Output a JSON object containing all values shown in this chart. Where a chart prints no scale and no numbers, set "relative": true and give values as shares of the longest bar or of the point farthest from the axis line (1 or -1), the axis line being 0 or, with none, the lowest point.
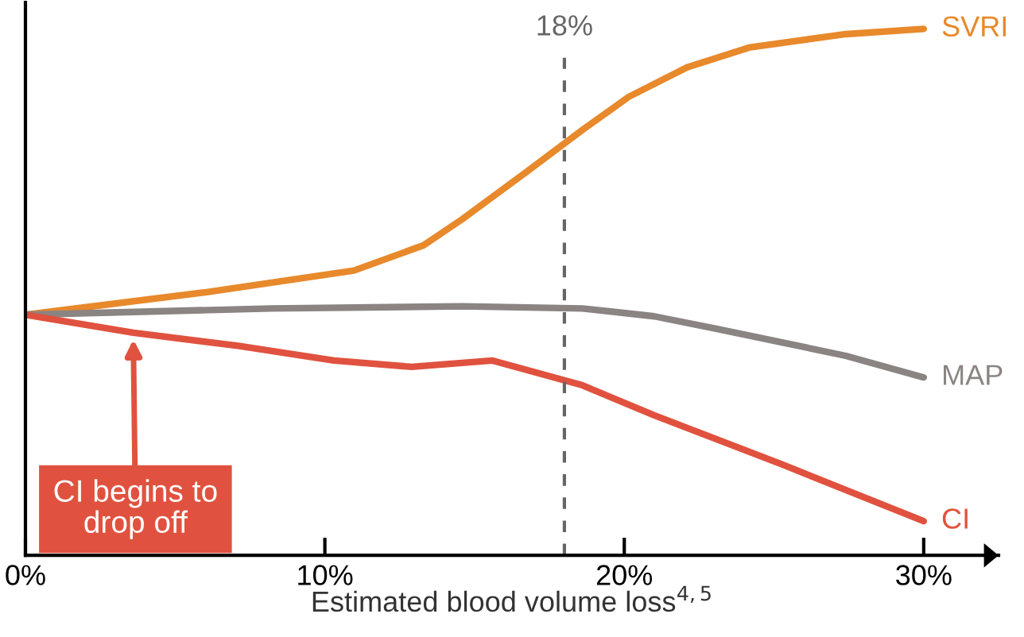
{
  "chart_data": {
    "type": "line",
    "relative": true,
    "xlabel": "Estimated blood volume loss$^{4,5}$",
    "xlim": [
      0,
      32.5
    ],
    "xticks": [
      {
        "value": 0,
        "label": "0%"
      },
      {
        "value": 10,
        "label": "10%"
      },
      {
        "value": 20,
        "label": "20%"
      },
      {
        "value": 30,
        "label": "30%"
      }
    ],
    "series": [
      {
        "name": "SVRI",
        "color": "#e8892b",
        "x": [
          0,
          6.05,
          10.97,
          13.3,
          14.6,
          16.7,
          18.6,
          20.15,
          22.1,
          24.2,
          27.4,
          30
        ],
        "values": [
          0.457,
          0.5,
          0.541,
          0.589,
          0.639,
          0.727,
          0.808,
          0.871,
          0.927,
          0.965,
          0.99,
          1.0
        ]
      },
      {
        "name": "MAP",
        "color": "#8a8483",
        "x": [
          0,
          8.2,
          14.6,
          18.6,
          21.0,
          23.1,
          25.3,
          27.4,
          30
        ],
        "values": [
          0.457,
          0.469,
          0.473,
          0.469,
          0.454,
          0.43,
          0.404,
          0.379,
          0.338
        ]
      },
      {
        "name": "CI",
        "color": "#e0523f",
        "x": [
          0,
          3.6,
          7.1,
          10.3,
          12.9,
          15.6,
          18.6,
          21.0,
          25.3,
          30
        ],
        "values": [
          0.457,
          0.423,
          0.398,
          0.37,
          0.358,
          0.37,
          0.323,
          0.266,
          0.172,
          0.065
        ]
      }
    ],
    "ref_lines": [
      {
        "axis": "x",
        "value": 18,
        "label": "18%",
        "color": "#666666",
        "line_style": "dashed"
      }
    ],
    "annotations": [
      {
        "text": "CI begins to\ndrop off",
        "x": 3.6,
        "y": 0.423
      }
    ],
    "grid": false,
    "legend": false,
    "marker": "none",
    "line_style": "solid"
  }
}
